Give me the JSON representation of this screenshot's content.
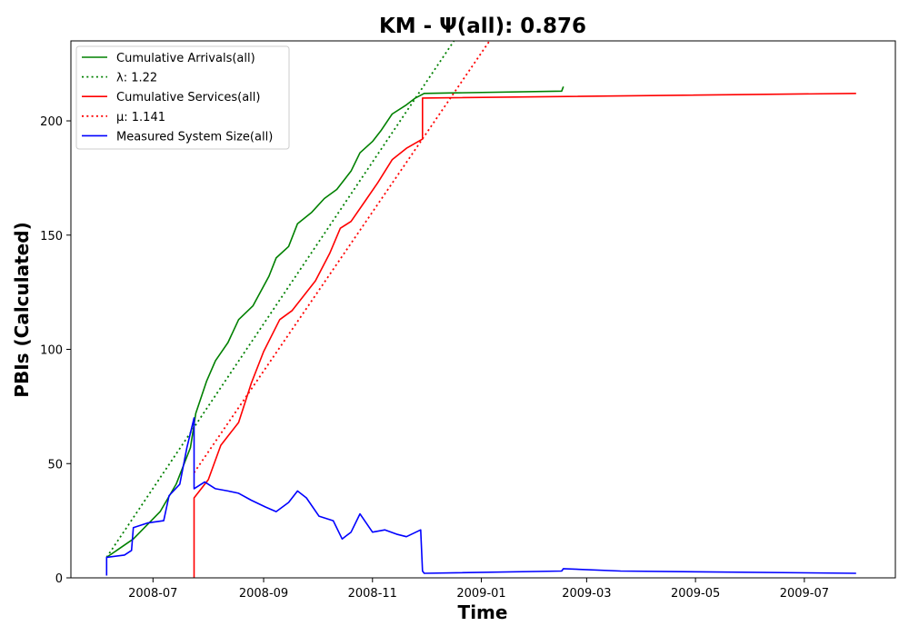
{
  "chart_data": {
    "type": "line",
    "title": "KM -  Ψ(all): 0.876",
    "xlabel": "Time",
    "ylabel": "PBIs (Calculated)",
    "xlim": [
      "2008-05-16",
      "2009-08-21"
    ],
    "ylim": [
      0,
      235
    ],
    "x_ticks": [
      "2008-07-01",
      "2008-09-01",
      "2008-11-01",
      "2009-01-01",
      "2009-03-01",
      "2009-05-01",
      "2009-07-01"
    ],
    "x_tick_labels": [
      "2008-07",
      "2008-09",
      "2008-11",
      "2009-01",
      "2009-03",
      "2009-05",
      "2009-07"
    ],
    "y_ticks": [
      0,
      50,
      100,
      150,
      200
    ],
    "grid": false,
    "legend_position": "top-left",
    "series": [
      {
        "name": "Cumulative Arrivals(all)",
        "color": "#008000",
        "style": "solid",
        "x": [
          "2008-06-05",
          "2008-06-20",
          "2008-07-05",
          "2008-07-14",
          "2008-07-22",
          "2008-07-25",
          "2008-07-31",
          "2008-08-05",
          "2008-08-12",
          "2008-08-18",
          "2008-08-26",
          "2008-09-04",
          "2008-09-08",
          "2008-09-15",
          "2008-09-20",
          "2008-09-28",
          "2008-10-05",
          "2008-10-12",
          "2008-10-20",
          "2008-10-25",
          "2008-11-01",
          "2008-11-06",
          "2008-11-12",
          "2008-11-20",
          "2008-11-25",
          "2008-11-30",
          "2009-02-15",
          "2009-02-16"
        ],
        "values": [
          9,
          17,
          29,
          41,
          57,
          72,
          86,
          95,
          103,
          113,
          119,
          132,
          140,
          145,
          155,
          160,
          166,
          170,
          178,
          186,
          191,
          196,
          203,
          207,
          210,
          212,
          213,
          215
        ]
      },
      {
        "name": "λ: 1.22",
        "color": "#008000",
        "style": "dotted",
        "x": [
          "2008-06-05",
          "2008-12-21"
        ],
        "values": [
          9,
          240
        ]
      },
      {
        "name": "Cumulative Services(all)",
        "color": "#ff0000",
        "style": "solid",
        "x": [
          "2008-07-24",
          "2008-07-24",
          "2008-08-01",
          "2008-08-08",
          "2008-08-18",
          "2008-08-25",
          "2008-09-01",
          "2008-09-10",
          "2008-09-17",
          "2008-09-30",
          "2008-10-08",
          "2008-10-14",
          "2008-10-20",
          "2008-10-28",
          "2008-11-04",
          "2008-11-12",
          "2008-11-20",
          "2008-11-29",
          "2008-11-29",
          "2009-07-30"
        ],
        "values": [
          0,
          35,
          43,
          58,
          68,
          85,
          99,
          113,
          117,
          130,
          142,
          153,
          156,
          165,
          173,
          183,
          188,
          192,
          210,
          212
        ]
      },
      {
        "name": "μ: 1.141",
        "color": "#ff0000",
        "style": "dotted",
        "x": [
          "2008-07-24",
          "2009-01-10"
        ],
        "values": [
          46,
          240
        ]
      },
      {
        "name": "Measured System Size(all)",
        "color": "#0000ff",
        "style": "solid",
        "x": [
          "2008-06-05",
          "2008-06-05",
          "2008-06-15",
          "2008-06-19",
          "2008-06-20",
          "2008-06-28",
          "2008-07-07",
          "2008-07-10",
          "2008-07-16",
          "2008-07-20",
          "2008-07-24",
          "2008-07-24",
          "2008-07-30",
          "2008-08-05",
          "2008-08-12",
          "2008-08-18",
          "2008-08-25",
          "2008-09-02",
          "2008-09-08",
          "2008-09-15",
          "2008-09-20",
          "2008-09-25",
          "2008-10-02",
          "2008-10-10",
          "2008-10-15",
          "2008-10-20",
          "2008-10-25",
          "2008-11-01",
          "2008-11-08",
          "2008-11-15",
          "2008-11-20",
          "2008-11-28",
          "2008-11-29",
          "2008-11-30",
          "2009-02-15",
          "2009-02-16",
          "2009-03-20",
          "2009-07-30"
        ],
        "values": [
          1,
          9,
          10,
          12,
          22,
          24,
          25,
          36,
          41,
          57,
          70,
          39,
          42,
          39,
          38,
          37,
          34,
          31,
          29,
          33,
          38,
          35,
          27,
          25,
          17,
          20,
          28,
          20,
          21,
          19,
          18,
          21,
          3,
          2,
          3,
          4,
          3,
          2
        ]
      }
    ]
  }
}
